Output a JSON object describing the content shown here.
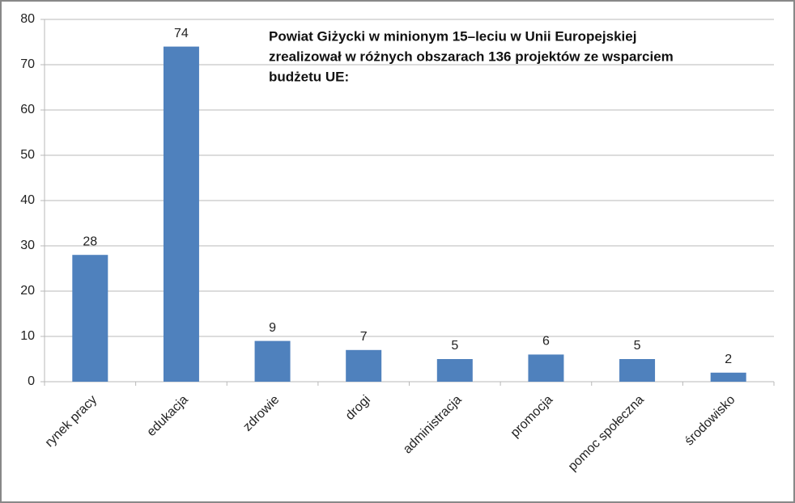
{
  "chart_data": {
    "type": "bar",
    "title": [
      "Powiat Giżycki w minionym 15–leciu w Unii Europejskiej",
      "zrealizował w różnych obszarach 136 projektów ze wsparciem",
      "budżetu UE:"
    ],
    "categories": [
      "rynek pracy",
      "edukacja",
      "zdrowie",
      "drogi",
      "administracja",
      "promocja",
      "pomoc społeczna",
      "środowisko"
    ],
    "values": [
      28,
      74,
      9,
      7,
      5,
      6,
      5,
      2
    ],
    "color": "#4f81bd",
    "ylim": [
      0,
      80
    ],
    "yticks": [
      0,
      10,
      20,
      30,
      40,
      50,
      60,
      70,
      80
    ],
    "grid": true
  }
}
